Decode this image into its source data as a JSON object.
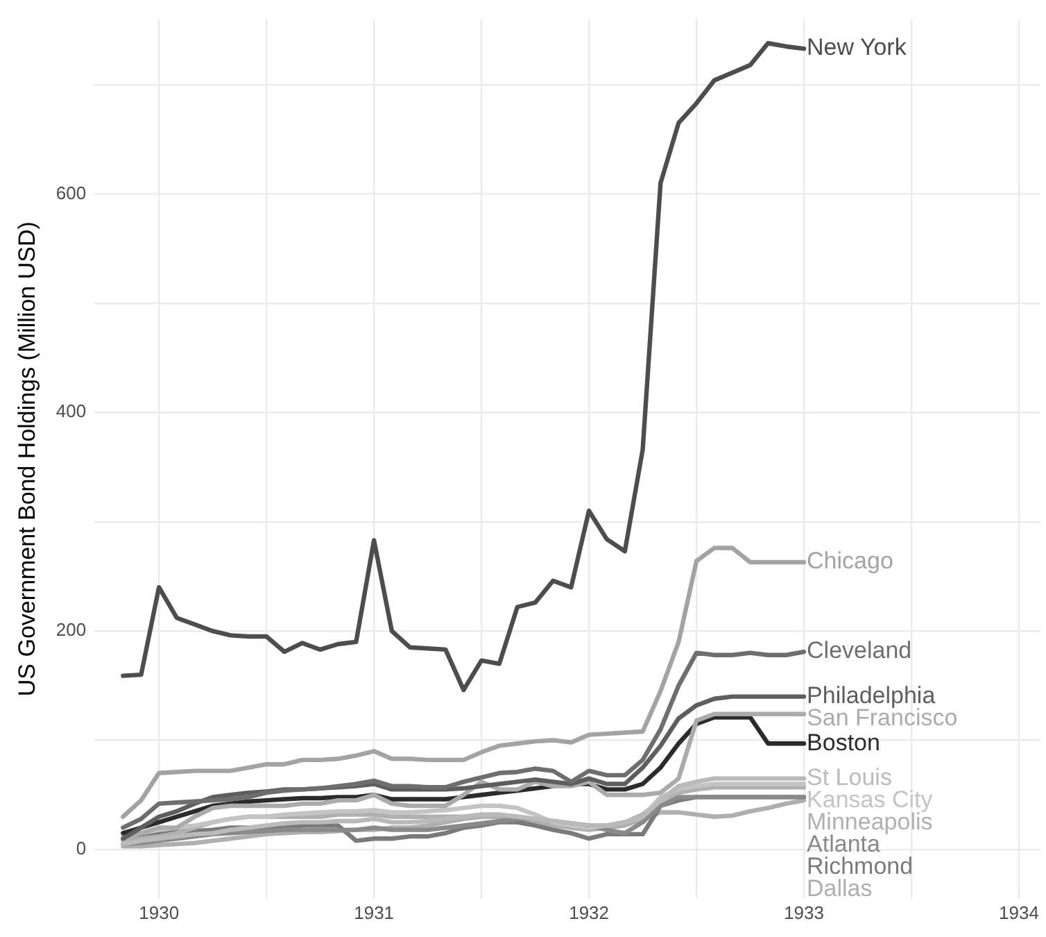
{
  "chart_data": {
    "type": "line",
    "ylabel": "US Government Bond Holdings (Million USD)",
    "x": [
      1929.833,
      1929.917,
      1930,
      1930.083,
      1930.167,
      1930.25,
      1930.333,
      1930.417,
      1930.5,
      1930.583,
      1930.667,
      1930.75,
      1930.833,
      1930.917,
      1931,
      1931.083,
      1931.167,
      1931.25,
      1931.333,
      1931.417,
      1931.5,
      1931.583,
      1931.667,
      1931.75,
      1931.833,
      1931.917,
      1932,
      1932.083,
      1932.167,
      1932.25,
      1932.333,
      1932.417,
      1932.5,
      1932.583,
      1932.667,
      1932.75,
      1932.833,
      1932.917,
      1933
    ],
    "xlim": [
      1929.7,
      1934.1
    ],
    "xticks": [
      1930,
      {
        "value": 1930.5,
        "label": null
      },
      1931,
      {
        "value": 1931.5,
        "label": null
      },
      1932,
      {
        "value": 1932.5,
        "label": null
      },
      1933,
      {
        "value": 1933.5,
        "label": null
      },
      1934
    ],
    "ylim": [
      -45,
      760
    ],
    "yticks": [
      0,
      {
        "value": 100,
        "label": null
      },
      200,
      {
        "value": 300,
        "label": null
      },
      400,
      {
        "value": 500,
        "label": null
      },
      600,
      {
        "value": 700,
        "label": null
      }
    ],
    "grid": true,
    "legend": false,
    "marker": "none",
    "line_style": "solid",
    "series": [
      {
        "name": "New York",
        "color": "#4d4d4d",
        "values": [
          159,
          160,
          240,
          212,
          206,
          200,
          196,
          195,
          195,
          181,
          189,
          183,
          188,
          190,
          283,
          200,
          185,
          184,
          183,
          146,
          173,
          170,
          222,
          226,
          246,
          240,
          310,
          284,
          273,
          366,
          610,
          665,
          683,
          704,
          711,
          718,
          738,
          735,
          733
        ]
      },
      {
        "name": "Chicago",
        "color": "#a3a3a3",
        "values": [
          30,
          45,
          70,
          71,
          72,
          72,
          72,
          75,
          78,
          78,
          82,
          82,
          83,
          86,
          90,
          83,
          83,
          82,
          82,
          82,
          89,
          95,
          97,
          99,
          100,
          98,
          105,
          106,
          107,
          108,
          145,
          190,
          264,
          276,
          276,
          263,
          263,
          263,
          263
        ]
      },
      {
        "name": "Cleveland",
        "color": "#6e6e6e",
        "values": [
          20,
          28,
          42,
          43,
          44,
          45,
          46,
          48,
          52,
          54,
          55,
          56,
          58,
          60,
          63,
          58,
          58,
          57,
          57,
          62,
          66,
          70,
          71,
          74,
          72,
          62,
          72,
          68,
          68,
          82,
          110,
          150,
          180,
          178,
          178,
          180,
          178,
          178,
          181
        ]
      },
      {
        "name": "Philadelphia",
        "color": "#5e5e5e",
        "values": [
          10,
          20,
          30,
          35,
          42,
          48,
          50,
          52,
          53,
          55,
          55,
          56,
          57,
          58,
          60,
          55,
          55,
          55,
          55,
          56,
          58,
          60,
          62,
          64,
          62,
          60,
          65,
          60,
          60,
          75,
          95,
          120,
          132,
          138,
          140,
          140,
          140,
          140,
          140
        ]
      },
      {
        "name": "San Francisco",
        "color": "#ababab",
        "values": [
          10,
          15,
          20,
          20,
          30,
          38,
          40,
          40,
          40,
          40,
          42,
          42,
          45,
          45,
          50,
          42,
          40,
          40,
          40,
          50,
          62,
          55,
          55,
          62,
          58,
          58,
          62,
          50,
          50,
          50,
          52,
          65,
          118,
          124,
          124,
          124,
          124,
          124,
          124
        ]
      },
      {
        "name": "Boston",
        "color": "#2b2b2b",
        "values": [
          15,
          20,
          25,
          30,
          35,
          40,
          42,
          44,
          45,
          46,
          47,
          47,
          48,
          48,
          50,
          46,
          46,
          46,
          46,
          48,
          50,
          52,
          54,
          56,
          58,
          60,
          60,
          55,
          55,
          60,
          75,
          97,
          115,
          121,
          121,
          121,
          97,
          97,
          97
        ]
      },
      {
        "name": "St Louis",
        "color": "#bababa",
        "values": [
          5,
          8,
          10,
          12,
          14,
          15,
          18,
          20,
          22,
          24,
          25,
          25,
          26,
          26,
          28,
          25,
          25,
          26,
          28,
          30,
          32,
          32,
          30,
          28,
          26,
          24,
          22,
          22,
          25,
          30,
          45,
          58,
          62,
          65,
          65,
          65,
          65,
          65,
          65
        ]
      },
      {
        "name": "Kansas City",
        "color": "#c4c4c4",
        "values": [
          12,
          15,
          18,
          20,
          22,
          25,
          28,
          30,
          30,
          32,
          33,
          34,
          35,
          35,
          36,
          34,
          34,
          35,
          36,
          38,
          40,
          40,
          38,
          32,
          25,
          22,
          20,
          22,
          25,
          30,
          48,
          55,
          58,
          60,
          60,
          60,
          60,
          60,
          60
        ]
      },
      {
        "name": "Minneapolis",
        "color": "#b0b0b0",
        "values": [
          8,
          10,
          12,
          15,
          20,
          25,
          28,
          30,
          30,
          30,
          30,
          30,
          32,
          32,
          32,
          30,
          30,
          30,
          30,
          30,
          32,
          32,
          30,
          28,
          26,
          24,
          22,
          22,
          25,
          32,
          45,
          52,
          55,
          57,
          57,
          57,
          57,
          57,
          57
        ]
      },
      {
        "name": "Atlanta",
        "color": "#8a8a8a",
        "values": [
          5,
          6,
          8,
          10,
          12,
          14,
          15,
          16,
          17,
          18,
          18,
          18,
          18,
          18,
          20,
          18,
          18,
          18,
          20,
          22,
          24,
          26,
          28,
          28,
          26,
          24,
          22,
          18,
          15,
          25,
          40,
          48,
          48,
          48,
          48,
          48,
          48,
          48,
          48
        ]
      },
      {
        "name": "Richmond",
        "color": "#7a7a7a",
        "values": [
          10,
          12,
          15,
          16,
          17,
          18,
          20,
          20,
          20,
          20,
          22,
          22,
          22,
          8,
          10,
          10,
          12,
          12,
          15,
          20,
          22,
          25,
          25,
          22,
          18,
          15,
          10,
          14,
          14,
          14,
          40,
          45,
          48,
          48,
          48,
          48,
          48,
          48,
          48
        ]
      },
      {
        "name": "Dallas",
        "color": "#afafaf",
        "values": [
          3,
          3,
          4,
          5,
          6,
          8,
          10,
          12,
          14,
          15,
          16,
          16,
          17,
          18,
          18,
          20,
          20,
          22,
          25,
          28,
          30,
          30,
          28,
          25,
          22,
          20,
          18,
          20,
          22,
          28,
          34,
          34,
          32,
          30,
          31,
          35,
          38,
          42,
          45
        ]
      }
    ]
  }
}
